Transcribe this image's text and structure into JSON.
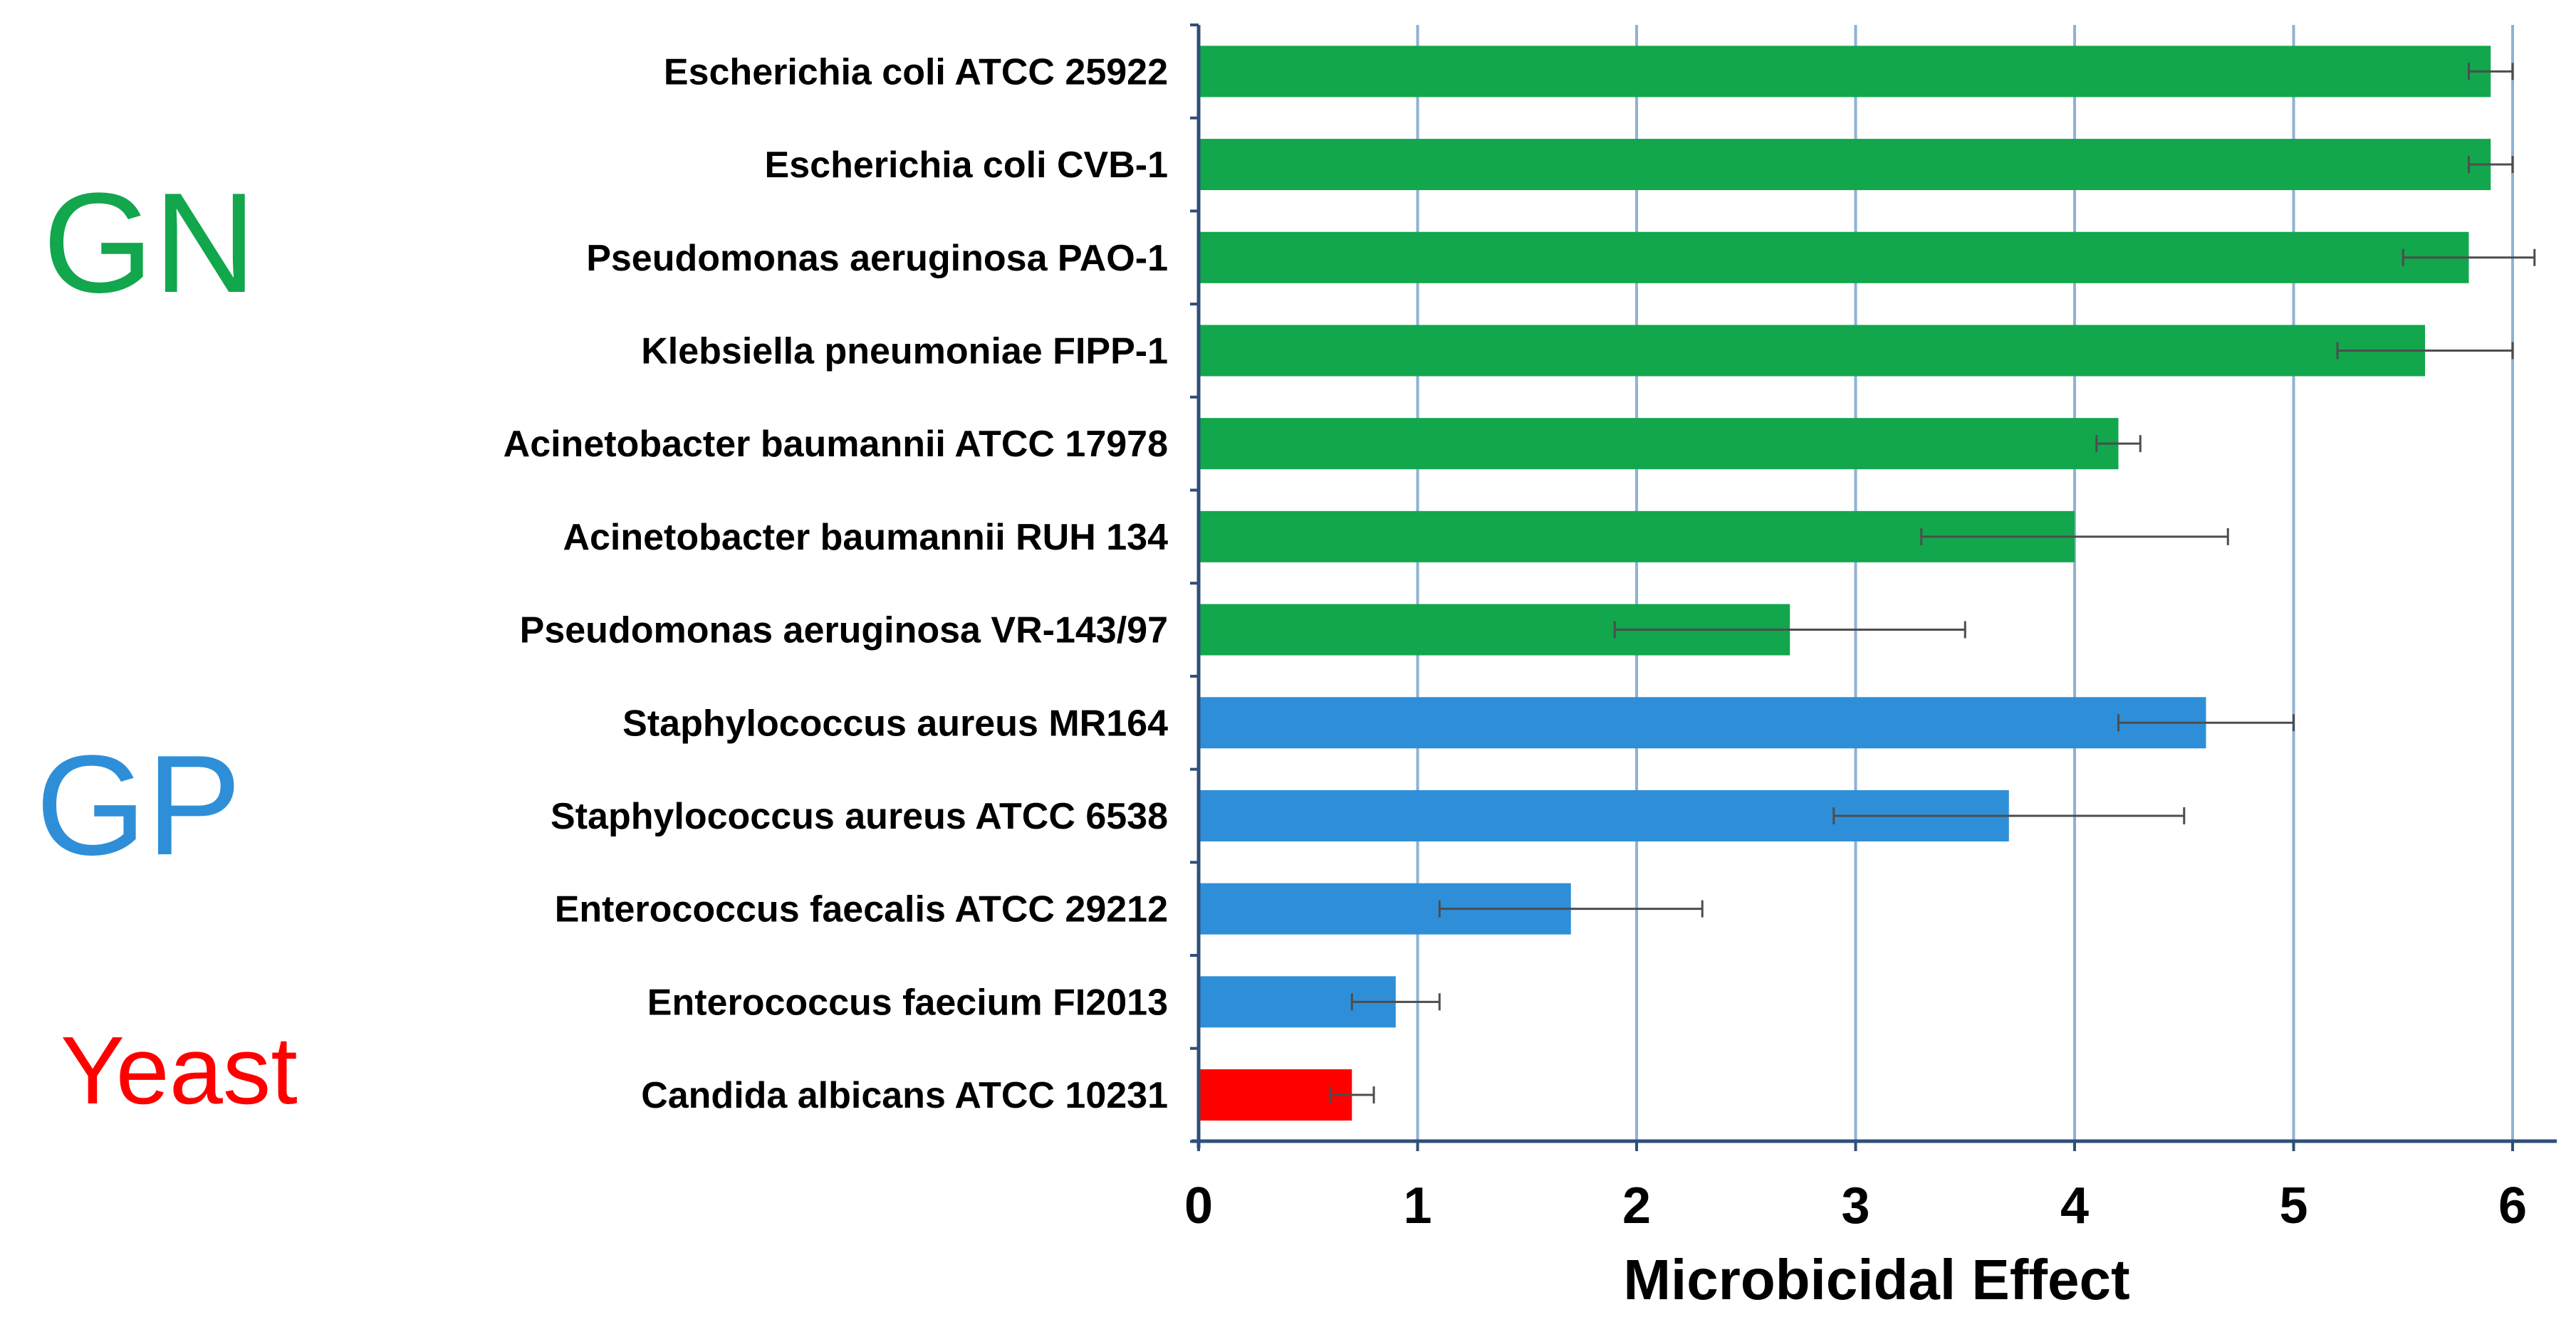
{
  "chart_data": {
    "type": "bar",
    "orientation": "horizontal",
    "xlabel": "Microbicidal Effect",
    "xlim": [
      0,
      6
    ],
    "xticks": [
      "0",
      "1",
      "2",
      "3",
      "4",
      "5",
      "6"
    ],
    "grid": "vertical",
    "categories": [
      "Escherichia coli ATCC 25922",
      "Escherichia coli CVB-1",
      "Pseudomonas aeruginosa PAO-1",
      "Klebsiella pneumoniae FIPP-1",
      "Acinetobacter baumannii ATCC 17978",
      "Acinetobacter baumannii RUH 134",
      "Pseudomonas aeruginosa VR-143/97",
      "Staphylococcus aureus MR164",
      "Staphylococcus aureus ATCC 6538",
      "Enterococcus faecalis ATCC 29212",
      "Enterococcus faecium FI2013",
      "Candida albicans ATCC 10231"
    ],
    "values": [
      5.9,
      5.9,
      5.8,
      5.6,
      4.2,
      4.0,
      2.7,
      4.6,
      3.7,
      1.7,
      0.9,
      0.7
    ],
    "errors": [
      0.1,
      0.1,
      0.3,
      0.4,
      0.1,
      0.7,
      0.8,
      0.4,
      0.8,
      0.6,
      0.2,
      0.1
    ],
    "groups": [
      "GN",
      "GN",
      "GN",
      "GN",
      "GN",
      "GN",
      "GN",
      "GP",
      "GP",
      "GP",
      "GP",
      "Yeast"
    ],
    "group_labels": [
      {
        "name": "GN",
        "color": "#12a64d"
      },
      {
        "name": "GP",
        "color": "#2e8fd8"
      },
      {
        "name": "Yeast",
        "color": "#ff0000"
      }
    ],
    "colors": {
      "GN": "#12a64d",
      "GP": "#2e8fd8",
      "Yeast": "#ff0000",
      "grid": "#8fb2d4",
      "axis": "#2f4f7a",
      "error_bar": "#4d4d4d"
    }
  }
}
